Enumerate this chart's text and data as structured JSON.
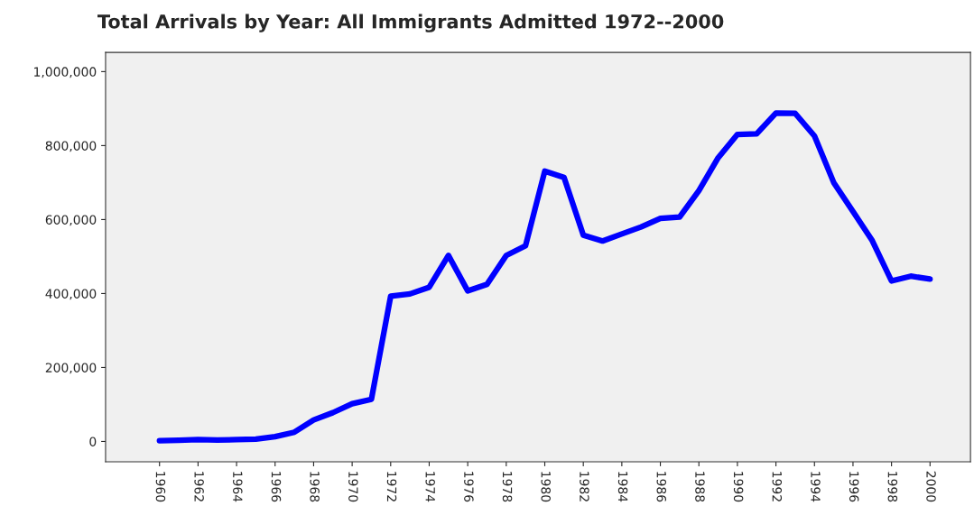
{
  "chart_data": {
    "type": "line",
    "title": "Total Arrivals by Year: All Immigrants Admitted 1972--2000",
    "x": [
      1960,
      1961,
      1962,
      1963,
      1964,
      1965,
      1966,
      1967,
      1968,
      1969,
      1970,
      1971,
      1972,
      1973,
      1974,
      1975,
      1976,
      1977,
      1978,
      1979,
      1980,
      1981,
      1982,
      1983,
      1984,
      1985,
      1986,
      1987,
      1988,
      1989,
      1990,
      1991,
      1992,
      1993,
      1994,
      1995,
      1996,
      1997,
      1998,
      1999,
      2000
    ],
    "series": [
      {
        "color": "#0000ff",
        "values": [
          2000,
          3000,
          5000,
          4000,
          5000,
          6500,
          13000,
          25000,
          58000,
          78000,
          102000,
          114000,
          393000,
          399000,
          417000,
          503000,
          407000,
          425000,
          503000,
          529000,
          731000,
          714000,
          558000,
          542000,
          561000,
          580000,
          603000,
          607000,
          678000,
          767000,
          830000,
          832000,
          888000,
          887000,
          826000,
          700000,
          622000,
          543000,
          434000,
          447000,
          439000
        ]
      }
    ],
    "xlim": [
      1957.2,
      2002.1
    ],
    "xticks": [
      1960,
      1962,
      1964,
      1966,
      1968,
      1970,
      1972,
      1974,
      1976,
      1978,
      1980,
      1982,
      1984,
      1986,
      1988,
      1990,
      1992,
      1994,
      1996,
      1998,
      2000
    ],
    "ylim": [
      -55000,
      1052000
    ],
    "yticks": [
      {
        "value": 0,
        "label": "0"
      },
      {
        "value": 200000,
        "label": "200,000"
      },
      {
        "value": 400000,
        "label": "400,000"
      },
      {
        "value": 600000,
        "label": "600,000"
      },
      {
        "value": 800000,
        "label": "800,000"
      },
      {
        "value": 1000000,
        "label": "1,000,000"
      }
    ],
    "grid": false,
    "legend": false,
    "marker": "none",
    "line_style": "solid"
  }
}
